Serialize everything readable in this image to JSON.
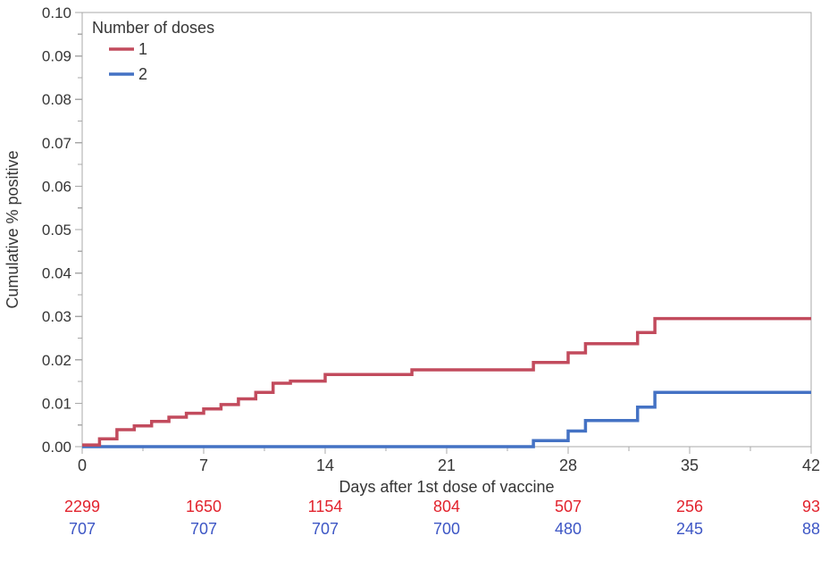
{
  "chart_data": {
    "type": "line",
    "subtype": "step-cumulative-incidence",
    "title": "",
    "xlabel": "Days after 1st dose of vaccine",
    "ylabel": "Cumulative % positive",
    "xlim": [
      0,
      42
    ],
    "ylim": [
      0,
      0.1
    ],
    "grid": "off",
    "axis_color": "#a8a8a8",
    "text_color": "#363636",
    "x_major_ticks": [
      0,
      7,
      14,
      21,
      28,
      35,
      42
    ],
    "x_major_tick_labels": [
      "0",
      "7",
      "14",
      "21",
      "28",
      "35",
      "42"
    ],
    "x_minor_ticks": [
      3.5,
      10.5,
      17.5,
      24.5,
      31.5,
      38.5
    ],
    "y_tick_step": 0.01,
    "y_tick_labels": [
      "0.00",
      "0.01",
      "0.02",
      "0.03",
      "0.04",
      "0.05",
      "0.06",
      "0.07",
      "0.08",
      "0.09",
      "0.10"
    ],
    "legend": {
      "title": "Number of doses",
      "position": "top-left-inside",
      "entries": [
        {
          "label": "1",
          "color": "#c24b5d"
        },
        {
          "label": "2",
          "color": "#4472c4"
        }
      ]
    },
    "series": [
      {
        "name": "1",
        "color": "#c24b5d",
        "points": [
          [
            0,
            0.0004
          ],
          [
            1,
            0.0018
          ],
          [
            2,
            0.0039
          ],
          [
            3,
            0.0048
          ],
          [
            4,
            0.0058
          ],
          [
            5,
            0.0068
          ],
          [
            6,
            0.0077
          ],
          [
            7,
            0.0087
          ],
          [
            8,
            0.0097
          ],
          [
            9,
            0.011
          ],
          [
            10,
            0.0125
          ],
          [
            11,
            0.0146
          ],
          [
            12,
            0.0151
          ],
          [
            14,
            0.0166
          ],
          [
            19,
            0.0177
          ],
          [
            26,
            0.0194
          ],
          [
            28,
            0.0216
          ],
          [
            29,
            0.0237
          ],
          [
            32,
            0.0263
          ],
          [
            33,
            0.0295
          ],
          [
            42,
            0.0295
          ]
        ]
      },
      {
        "name": "2",
        "color": "#4472c4",
        "points": [
          [
            0,
            0.0
          ],
          [
            26,
            0.0014
          ],
          [
            28,
            0.0036
          ],
          [
            29,
            0.006
          ],
          [
            32,
            0.0091
          ],
          [
            33,
            0.0125
          ],
          [
            42,
            0.0125
          ]
        ]
      }
    ],
    "at_risk_table": {
      "x": [
        0,
        7,
        14,
        21,
        28,
        35,
        42
      ],
      "rows": [
        {
          "name": "1",
          "color": "#e2232d",
          "values": [
            "2299",
            "1650",
            "1154",
            "804",
            "507",
            "256",
            "93"
          ]
        },
        {
          "name": "2",
          "color": "#3d56c5",
          "values": [
            "707",
            "707",
            "707",
            "700",
            "480",
            "245",
            "88"
          ]
        }
      ]
    }
  }
}
